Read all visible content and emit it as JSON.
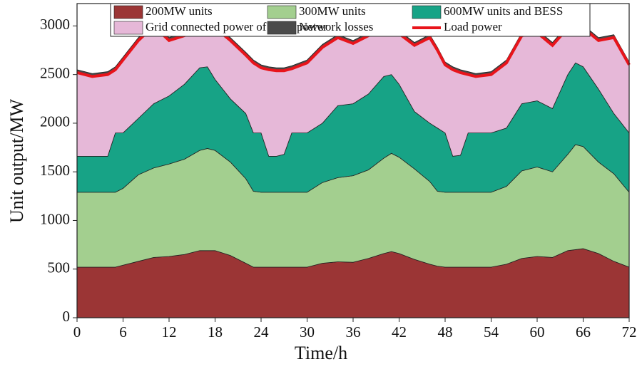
{
  "chart_data": {
    "type": "stacked-area",
    "x_label": "Time/h",
    "y_label": "Unit output/MW",
    "x": [
      0,
      2,
      4,
      5,
      6,
      8,
      10,
      12,
      14,
      16,
      17,
      18,
      20,
      22,
      23,
      24,
      25,
      26,
      27,
      28,
      30,
      32,
      34,
      36,
      38,
      40,
      41,
      42,
      44,
      46,
      47,
      48,
      49,
      50,
      51,
      52,
      54,
      56,
      58,
      60,
      62,
      64,
      65,
      66,
      68,
      70,
      72
    ],
    "xlim": [
      0,
      72
    ],
    "xticks": [
      0,
      6,
      12,
      18,
      24,
      30,
      36,
      42,
      48,
      54,
      60,
      66,
      72
    ],
    "ylim": [
      0,
      3230
    ],
    "yticks": [
      0,
      500,
      1000,
      1500,
      2000,
      2500,
      3000
    ],
    "series": [
      {
        "name": "200MW units",
        "color": "#9b3535",
        "values": [
          520,
          520,
          520,
          520,
          540,
          580,
          620,
          630,
          650,
          690,
          690,
          690,
          640,
          560,
          520,
          520,
          520,
          520,
          520,
          520,
          520,
          560,
          575,
          570,
          610,
          660,
          680,
          660,
          600,
          550,
          530,
          520,
          520,
          520,
          520,
          520,
          520,
          550,
          610,
          630,
          620,
          690,
          700,
          710,
          660,
          580,
          520
        ]
      },
      {
        "name": "300MW units",
        "color": "#a3cf8f",
        "values": [
          770,
          770,
          770,
          770,
          790,
          890,
          920,
          950,
          980,
          1030,
          1050,
          1030,
          960,
          870,
          780,
          770,
          770,
          770,
          770,
          770,
          770,
          830,
          865,
          890,
          910,
          980,
          1010,
          990,
          930,
          850,
          770,
          770,
          770,
          770,
          770,
          770,
          770,
          800,
          900,
          920,
          880,
          990,
          1080,
          1050,
          940,
          900,
          770
        ]
      },
      {
        "name": "600MW units and BESS",
        "color": "#17a386",
        "values": [
          370,
          370,
          370,
          610,
          570,
          580,
          660,
          700,
          770,
          850,
          840,
          730,
          650,
          670,
          600,
          610,
          370,
          370,
          390,
          610,
          610,
          610,
          740,
          740,
          780,
          840,
          810,
          750,
          590,
          600,
          650,
          610,
          370,
          380,
          610,
          610,
          610,
          600,
          690,
          680,
          650,
          820,
          840,
          820,
          750,
          620,
          610
        ]
      },
      {
        "name": "Grid connected power of wind power",
        "color": "#e6b8d8",
        "values": [
          860,
          820,
          840,
          650,
          750,
          800,
          800,
          570,
          500,
          410,
          440,
          530,
          600,
          600,
          720,
          670,
          890,
          880,
          860,
          660,
          720,
          780,
          700,
          620,
          600,
          480,
          460,
          520,
          680,
          880,
          800,
          700,
          890,
          850,
          600,
          580,
          600,
          670,
          700,
          700,
          650,
          480,
          390,
          400,
          500,
          780,
          700
        ]
      },
      {
        "name": "Network losses",
        "color": "#4a4a4a",
        "values": [
          30,
          30,
          30,
          30,
          30,
          30,
          30,
          30,
          30,
          30,
          30,
          30,
          30,
          30,
          30,
          30,
          30,
          30,
          30,
          30,
          30,
          30,
          30,
          30,
          30,
          30,
          30,
          30,
          30,
          30,
          30,
          30,
          30,
          30,
          30,
          30,
          30,
          30,
          30,
          30,
          30,
          30,
          30,
          30,
          30,
          30,
          30
        ]
      },
      {
        "name": "Load power",
        "color": "#e8141b",
        "kind": "line",
        "values": [
          2520,
          2480,
          2500,
          2550,
          2650,
          2850,
          3000,
          2850,
          2900,
          2980,
          3020,
          2980,
          2850,
          2700,
          2620,
          2570,
          2550,
          2540,
          2540,
          2560,
          2620,
          2780,
          2880,
          2820,
          2900,
          2960,
          2960,
          2920,
          2800,
          2880,
          2750,
          2600,
          2550,
          2520,
          2500,
          2480,
          2500,
          2620,
          2900,
          2930,
          2800,
          2980,
          3010,
          2980,
          2850,
          2880,
          2600
        ]
      }
    ]
  }
}
